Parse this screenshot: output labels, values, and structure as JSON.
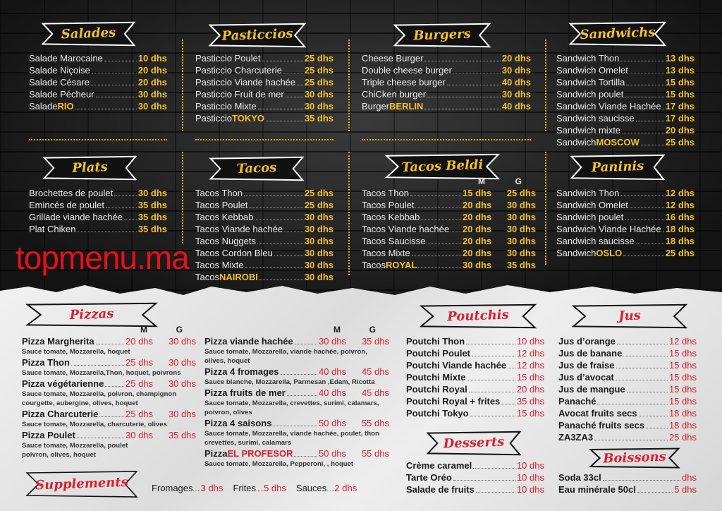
{
  "colors": {
    "gold": "#f2c12e",
    "red": "#d8202e",
    "dark_bg": "#232323",
    "paper_bg": "#e6e6e6"
  },
  "size_headers": {
    "m": "M",
    "g": "G"
  },
  "sections": [
    {
      "id": "salades",
      "title": "Salades",
      "theme": "dark",
      "items": [
        {
          "name": "Salade Marocaine",
          "price": "10 dhs"
        },
        {
          "name": "Salade Niçoise",
          "price": "20 dhs"
        },
        {
          "name": "Salade Césare",
          "price": "20 dhs"
        },
        {
          "name": "Salade Pécheur",
          "price": "30 dhs"
        },
        {
          "name": "Salade ",
          "highlight": "RIO",
          "price": "30 dhs"
        }
      ]
    },
    {
      "id": "pasticcios",
      "title": "Pasticcios",
      "theme": "dark",
      "items": [
        {
          "name": "Pasticcio Poulet",
          "price": "25 dhs"
        },
        {
          "name": "Pasticcio Charcuterie",
          "price": "25 dhs"
        },
        {
          "name": "Pasticcio Viande hachée",
          "price": "25 dhs"
        },
        {
          "name": "Pasticcio Fruit de mer",
          "price": "30 dhs"
        },
        {
          "name": "Pasticcio Mixte",
          "price": "30 dhs"
        },
        {
          "name": "Pasticcio ",
          "highlight": "TOKYO",
          "price": "35 dhs"
        }
      ]
    },
    {
      "id": "burgers",
      "title": "Burgers",
      "theme": "dark",
      "items": [
        {
          "name": "Cheese Burger",
          "price": "20 dhs"
        },
        {
          "name": "Double cheese burger",
          "price": "30 dhs"
        },
        {
          "name": "Triple cheese burger",
          "price": "40 dhs"
        },
        {
          "name": "ChiCken burger",
          "price": "30 dhs"
        },
        {
          "name": "Burger ",
          "highlight": "BERLIN",
          "price": "40 dhs"
        }
      ]
    },
    {
      "id": "sandwichs",
      "title": "Sandwichs",
      "theme": "dark",
      "items": [
        {
          "name": "Sandwich Thon",
          "price": "13 dhs"
        },
        {
          "name": "Sandwich Omelet",
          "price": "13 dhs"
        },
        {
          "name": "Sandwich Tortilla",
          "price": "15 dhs"
        },
        {
          "name": "Sandwich poulet",
          "price": "15 dhs"
        },
        {
          "name": "Sandwich Viande Hachée",
          "price": "17 dhs"
        },
        {
          "name": "Sandwich saucisse",
          "price": "17 dhs"
        },
        {
          "name": "Sandwich mixte",
          "price": "20 dhs"
        },
        {
          "name": "Sandwich ",
          "highlight": "MOSCOW",
          "price": "25 dhs"
        }
      ]
    },
    {
      "id": "plats",
      "title": "Plats",
      "theme": "dark",
      "items": [
        {
          "name": "Brochettes de poulet",
          "price": "30 dhs"
        },
        {
          "name": "Emincés de poulet",
          "price": "35 dhs"
        },
        {
          "name": "Grillade viande hachée",
          "price": "35 dhs"
        },
        {
          "name": "Plat Chiken",
          "price": "35 dhs"
        }
      ]
    },
    {
      "id": "tacos",
      "title": "Tacos",
      "theme": "dark",
      "items": [
        {
          "name": "Tacos Thon",
          "price": "25 dhs"
        },
        {
          "name": "Tacos Poulet",
          "price": "25 dhs"
        },
        {
          "name": "Tacos Kebbab",
          "price": "30 dhs"
        },
        {
          "name": "Tacos Viande hachée",
          "price": "30 dhs"
        },
        {
          "name": "Tacos Nuggets",
          "price": "30 dhs"
        },
        {
          "name": "Tacos Cordon Bleu",
          "price": "30 dhs"
        },
        {
          "name": "Tacos Mixte",
          "price": "30 dhs"
        },
        {
          "name": "Tacos ",
          "highlight": "NAIROBI",
          "price": "30 dhs"
        }
      ]
    },
    {
      "id": "tacos_beldi",
      "title": "Tacos Beldi",
      "theme": "dark",
      "sizes": true,
      "items": [
        {
          "name": "Tacos Thon",
          "price": "15 dhs",
          "price_g": "25 dhs"
        },
        {
          "name": "Tacos Poulet",
          "price": "20 dhs",
          "price_g": "30 dhs"
        },
        {
          "name": "Tacos Kebbab",
          "price": "20 dhs",
          "price_g": "30 dhs"
        },
        {
          "name": "Tacos Viande hachée",
          "price": "20 dhs",
          "price_g": "30 dhs"
        },
        {
          "name": "Tacos Saucisse",
          "price": "20 dhs",
          "price_g": "30 dhs"
        },
        {
          "name": "Tacos Mixte",
          "price": "20 dhs",
          "price_g": "30 dhs"
        },
        {
          "name": "Tacos ",
          "highlight": "ROYAL",
          "price": "30 dhs",
          "price_g": "35 dhs"
        }
      ]
    },
    {
      "id": "paninis",
      "title": "Paninis",
      "theme": "dark",
      "items": [
        {
          "name": "Sandwich Thon",
          "price": "12 dhs"
        },
        {
          "name": "Sandwich Omelet",
          "price": "12 dhs"
        },
        {
          "name": "Sandwich poulet",
          "price": "16 dhs"
        },
        {
          "name": "Sandwich Viande Hachée",
          "price": "18 dhs"
        },
        {
          "name": "Sandwich saucisse",
          "price": "18 dhs"
        },
        {
          "name": "Sandwich ",
          "highlight": "OSLO",
          "price": "25 dhs"
        }
      ]
    },
    {
      "id": "pizzas",
      "title": "Pizzas",
      "theme": "lite",
      "sizes": true,
      "items": [
        {
          "name": "Pizza Margherita",
          "price": "20 dhs",
          "price_g": "30 dhs",
          "desc": "Sauce tomate, Mozzarella, hoquet"
        },
        {
          "name": "Pizza Thon",
          "price": "25 dhs",
          "price_g": "30 dhs",
          "desc": "Sauce tomate, Mozzarella,Thon, hoquet, poivrons"
        },
        {
          "name": "Pizza végétarienne",
          "price": "25 dhs",
          "price_g": "30 dhs",
          "desc": "Sauce tomate, Mozzarella, poivron, champignon\ncourgette, aubergine, olives, hoquet"
        },
        {
          "name": "Pizza Charcuterie",
          "price": "25 dhs",
          "price_g": "30 dhs",
          "desc": "Sauce tomate, Mozzarella, charcuterie, olives"
        },
        {
          "name": "Pizza Poulet",
          "price": "30 dhs",
          "price_g": "35 dhs",
          "desc": " Sauce tomate, Mozzarella, poulet\npoivron, olives, hoquet"
        }
      ]
    },
    {
      "id": "pizzas_2",
      "title": "",
      "theme": "lite",
      "sizes": true,
      "items": [
        {
          "name": "Pizza viande hachée",
          "price": "30 dhs",
          "price_g": "35 dhs",
          "desc": "Sauce tomate, Mozzarella, viande hachée, poivron,\nolives, hoquet"
        },
        {
          "name": "Pizza 4 fromages",
          "price": "40 dhs",
          "price_g": "45 dhs",
          "desc": "Sauce blanche, Mozzarella, Parmesan ,Edam, Ricotta"
        },
        {
          "name": "Pizza fruits de mer",
          "price": "40 dhs",
          "price_g": "45 dhs",
          "desc": "Sauce tomate, Mozzarella, crevettes, surimi, calamars,\npoivron, olives"
        },
        {
          "name": "Pizza 4 saisons",
          "price": "50 dhs",
          "price_g": "55 dhs",
          "desc": "Sauce tomate, Mozzarella, viande hachée, poulet, thon\ncrevettes, surimi, calamars"
        },
        {
          "name": "Pizza ",
          "highlight": "EL PROFESOR",
          "price": "50 dhs",
          "price_g": "55 dhs",
          "desc": "Sauce tomate, Mozzarella, Pepperoni, , hoquet"
        }
      ]
    },
    {
      "id": "poutchis",
      "title": "Poutchis",
      "theme": "lite",
      "items": [
        {
          "name": "Poutchi Thon",
          "price": "10 dhs"
        },
        {
          "name": "Poutchi Poulet",
          "price": "12 dhs"
        },
        {
          "name": "Poutchi Viande hachée",
          "price": "12 dhs"
        },
        {
          "name": "Poutchi Mixte",
          "price": "15 dhs"
        },
        {
          "name": "Poutchi Royal",
          "price": "20 dhs"
        },
        {
          "name": "Poutchi Royal + frites",
          "price": "35 dhs"
        },
        {
          "name": "Poutchi Tokyo",
          "price": "15 dhs"
        }
      ]
    },
    {
      "id": "jus",
      "title": "Jus",
      "theme": "lite",
      "items": [
        {
          "name": "Jus d’orange",
          "price": "12 dhs"
        },
        {
          "name": "Jus de banane",
          "price": "15 dhs"
        },
        {
          "name": "Jus de fraise",
          "price": "15 dhs"
        },
        {
          "name": "Jus d’avocat",
          "price": "15 dhs"
        },
        {
          "name": "Jus de mangue",
          "price": "15 dhs"
        },
        {
          "name": "Panaché",
          "price": "15 dhs"
        },
        {
          "name": "Avocat fruits secs",
          "price": "18 dhs"
        },
        {
          "name": "Panaché fruits secs",
          "price": "18 dhs"
        },
        {
          "name": "ZA3ZA3",
          "price": "25 dhs"
        }
      ]
    },
    {
      "id": "desserts",
      "title": "Desserts",
      "theme": "lite",
      "items": [
        {
          "name": "Crème caramel",
          "price": "10 dhs"
        },
        {
          "name": "Tarte Oréo",
          "price": "10 dhs"
        },
        {
          "name": "Salade de fruits",
          "price": "10 dhs"
        }
      ]
    },
    {
      "id": "boissons",
      "title": "Boissons",
      "theme": "lite",
      "items": [
        {
          "name": "Soda 33cl",
          "price": "dhs"
        },
        {
          "name": "Eau minérale 50cl",
          "price": "5 dhs"
        }
      ]
    }
  ],
  "supplements": {
    "title": "Supplements",
    "items": [
      {
        "name": "Fromages",
        "price": "3 dhs"
      },
      {
        "name": "Frites",
        "price": "5 dhs"
      },
      {
        "name": "Sauces",
        "price": "2 dhs"
      }
    ]
  },
  "watermark": "topmenu.ma"
}
